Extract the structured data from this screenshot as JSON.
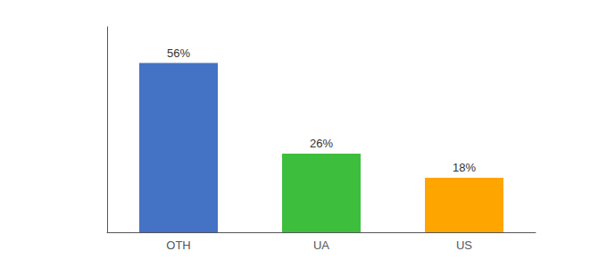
{
  "chart_data": {
    "type": "bar",
    "categories": [
      "OTH",
      "UA",
      "US"
    ],
    "values": [
      56,
      26,
      18
    ],
    "value_labels": [
      "56%",
      "26%",
      "18%"
    ],
    "colors": [
      "#4472C4",
      "#3DBE3D",
      "#FFA500"
    ],
    "ylim": [
      0,
      68
    ],
    "grid": false,
    "tick_labels": "x",
    "data_labels": true
  }
}
